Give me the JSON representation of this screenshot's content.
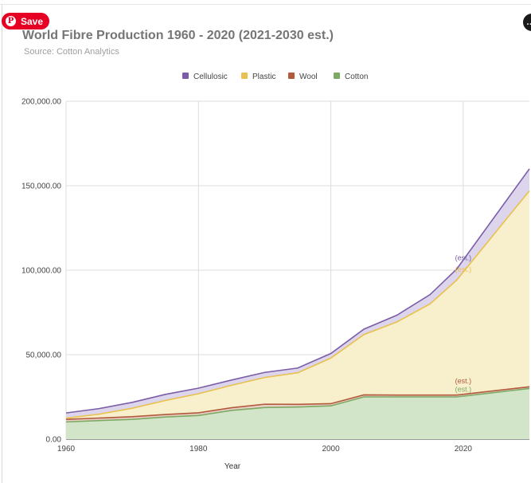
{
  "save_button": {
    "label": "Save",
    "icon": "pinterest-p-icon"
  },
  "chart_data": {
    "type": "area",
    "stacked": true,
    "title": "World Fibre Production 1960 - 2020 (2021-2030 est.)",
    "subtitle": "Source: Cotton Analytics",
    "xlabel": "Year",
    "ylabel": "",
    "xlim": [
      1960,
      2030
    ],
    "ylim": [
      0,
      200000
    ],
    "x_ticks": [
      "1960",
      "1980",
      "2000",
      "2020"
    ],
    "y_ticks": [
      "0.00",
      "50,000.00",
      "100,000.00",
      "150,000.00",
      "200,000.00"
    ],
    "legend_position": "top",
    "grid": true,
    "series": [
      {
        "name": "Cellulosic",
        "color": "#7b5ea7",
        "fill": "#ddd5ec",
        "x": [
          1960,
          1965,
          1970,
          1975,
          1980,
          1985,
          1990,
          1995,
          2000,
          2005,
          2010,
          2015,
          2019,
          2030
        ],
        "values": [
          3100,
          3300,
          3500,
          3600,
          3300,
          3100,
          3000,
          2800,
          2700,
          3200,
          4000,
          5500,
          6500,
          13000
        ]
      },
      {
        "name": "Plastic",
        "color": "#e8c14e",
        "fill": "#f8efcc",
        "x": [
          1960,
          1965,
          1970,
          1975,
          1980,
          1985,
          1990,
          1995,
          2000,
          2005,
          2010,
          2015,
          2019,
          2030
        ],
        "values": [
          700,
          2300,
          5000,
          8300,
          11300,
          13300,
          15800,
          18700,
          27000,
          35700,
          43300,
          54000,
          68000,
          116000
        ]
      },
      {
        "name": "Wool",
        "color": "#b25a3c",
        "fill": "#e8cfc4",
        "x": [
          1960,
          1965,
          1970,
          1975,
          1980,
          1985,
          1990,
          1995,
          2000,
          2005,
          2010,
          2015,
          2019,
          2030
        ],
        "values": [
          1500,
          1500,
          1600,
          1500,
          1600,
          1600,
          2000,
          1600,
          1300,
          1200,
          1100,
          1100,
          1100,
          1000
        ]
      },
      {
        "name": "Cotton",
        "color": "#7daa65",
        "fill": "#d3e5c8",
        "x": [
          1960,
          1965,
          1970,
          1975,
          1980,
          1985,
          1990,
          1995,
          2000,
          2005,
          2010,
          2015,
          2019,
          2030
        ],
        "values": [
          10200,
          11000,
          11700,
          13100,
          14000,
          17000,
          18700,
          19000,
          19700,
          25000,
          25000,
          25000,
          25000,
          30000
        ]
      }
    ],
    "annotations": [
      {
        "text": "(est.)",
        "series": "Cellulosic",
        "x": 2020,
        "y": 106000
      },
      {
        "text": "(est.)",
        "series": "Plastic",
        "x": 2020,
        "y": 99000
      },
      {
        "text": "(est.)",
        "series": "Wool",
        "x": 2020,
        "y": 33000
      },
      {
        "text": "(est.)",
        "series": "Cotton",
        "x": 2020,
        "y": 28000
      }
    ]
  }
}
